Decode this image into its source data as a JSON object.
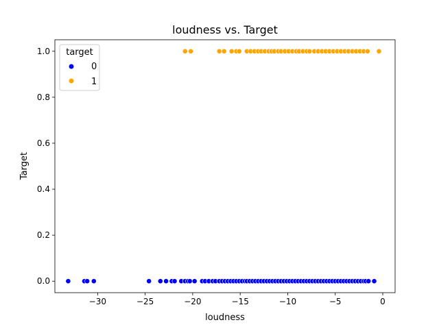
{
  "chart_data": {
    "type": "scatter",
    "title": "loudness vs. Target",
    "xlabel": "loudness",
    "ylabel": "Target",
    "xlim": [
      -34.5,
      1.3
    ],
    "ylim": [
      -0.05,
      1.05
    ],
    "xticks": [
      -30,
      -25,
      -20,
      -15,
      -10,
      -5,
      0
    ],
    "xtick_labels": [
      "−30",
      "−25",
      "−20",
      "−15",
      "−10",
      "−5",
      "0"
    ],
    "yticks": [
      0.0,
      0.2,
      0.4,
      0.6,
      0.8,
      1.0
    ],
    "ytick_labels": [
      "0.0",
      "0.2",
      "0.4",
      "0.6",
      "0.8",
      "1.0"
    ],
    "grid": false,
    "legend": {
      "title": "target",
      "placement": "top-left",
      "entries": [
        {
          "label": "0",
          "color": "#0000ff"
        },
        {
          "label": "1",
          "color": "#ffa500"
        }
      ]
    },
    "series": [
      {
        "name": "0",
        "color": "#0000ff",
        "y": 0,
        "x": [
          -33.1,
          -31.4,
          -31.1,
          -30.4,
          -24.6,
          -23.4,
          -22.8,
          -22.2,
          -21.9,
          -21.2,
          -20.8,
          -20.5,
          -20.3,
          -19.8,
          -19.0,
          -18.7,
          -18.3,
          -17.9,
          -17.6,
          -17.2,
          -16.9,
          -16.6,
          -16.3,
          -16.0,
          -15.7,
          -15.4,
          -15.1,
          -14.8,
          -14.5,
          -14.3,
          -14.0,
          -13.7,
          -13.4,
          -13.1,
          -12.8,
          -12.5,
          -12.2,
          -11.9,
          -11.6,
          -11.3,
          -11.0,
          -10.7,
          -10.4,
          -10.1,
          -9.8,
          -9.5,
          -9.2,
          -8.9,
          -8.6,
          -8.3,
          -8.0,
          -7.7,
          -7.4,
          -7.1,
          -6.8,
          -6.5,
          -6.2,
          -5.9,
          -5.6,
          -5.3,
          -5.0,
          -4.7,
          -4.4,
          -4.1,
          -3.8,
          -3.5,
          -3.2,
          -2.9,
          -2.6,
          -2.3,
          -2.0,
          -1.8,
          -1.5,
          -0.9
        ]
      },
      {
        "name": "1",
        "color": "#ffa500",
        "y": 1,
        "x": [
          -20.8,
          -20.2,
          -17.2,
          -16.7,
          -15.9,
          -15.4,
          -15.1,
          -14.3,
          -13.9,
          -13.5,
          -13.1,
          -12.8,
          -12.4,
          -12.0,
          -11.7,
          -11.4,
          -11.0,
          -10.7,
          -10.3,
          -9.9,
          -9.5,
          -9.1,
          -8.8,
          -8.4,
          -8.0,
          -7.7,
          -7.2,
          -6.8,
          -6.4,
          -6.0,
          -5.6,
          -5.2,
          -4.8,
          -4.4,
          -4.0,
          -3.6,
          -3.2,
          -2.8,
          -2.4,
          -2.0,
          -1.6,
          -0.4
        ]
      }
    ]
  }
}
